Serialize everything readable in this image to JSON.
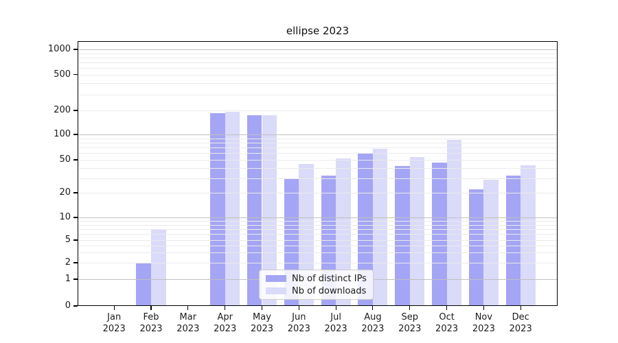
{
  "title": "ellipse 2023",
  "colors": {
    "ips": "#a5a5f5",
    "downloads": "#dadaf9",
    "grid_major": "#c0c0c0",
    "grid_minor": "#ebebeb",
    "spine": "#000000",
    "text": "#1a1a1a",
    "legend_border": "#cccccc"
  },
  "legend": {
    "items": [
      {
        "label": "Nb of distinct IPs",
        "color_key": "ips"
      },
      {
        "label": "Nb of downloads",
        "color_key": "downloads"
      }
    ]
  },
  "chart_data": {
    "type": "bar",
    "title": "ellipse 2023",
    "categories": [
      "Jan 2023",
      "Feb 2023",
      "Mar 2023",
      "Apr 2023",
      "May 2023",
      "Jun 2023",
      "Jul 2023",
      "Aug 2023",
      "Sep 2023",
      "Oct 2023",
      "Nov 2023",
      "Dec 2023"
    ],
    "series": [
      {
        "name": "Nb of distinct IPs",
        "color_key": "ips",
        "values": [
          0,
          2,
          0,
          185,
          174,
          30,
          32,
          59,
          42,
          46,
          22,
          32
        ]
      },
      {
        "name": "Nb of downloads",
        "color_key": "downloads",
        "values": [
          0,
          7,
          0,
          194,
          174,
          45,
          52,
          68,
          54,
          86,
          29,
          43
        ]
      }
    ],
    "xlabel": "",
    "ylabel": "",
    "yscale": "log above 1, linear segment 0 to 1 (symlog-like)",
    "yticks": [
      0,
      1,
      2,
      5,
      10,
      20,
      50,
      100,
      200,
      500,
      1000
    ],
    "ylim": [
      0,
      1300
    ],
    "grid": "major and minor horizontal gridlines on",
    "legend_position": "lower center"
  }
}
